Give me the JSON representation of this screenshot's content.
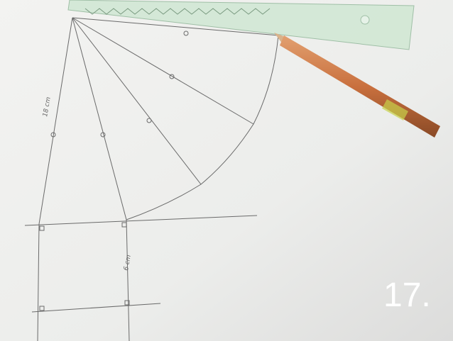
{
  "label": "17.",
  "annotations": [
    "18 cm",
    "6 cm"
  ]
}
